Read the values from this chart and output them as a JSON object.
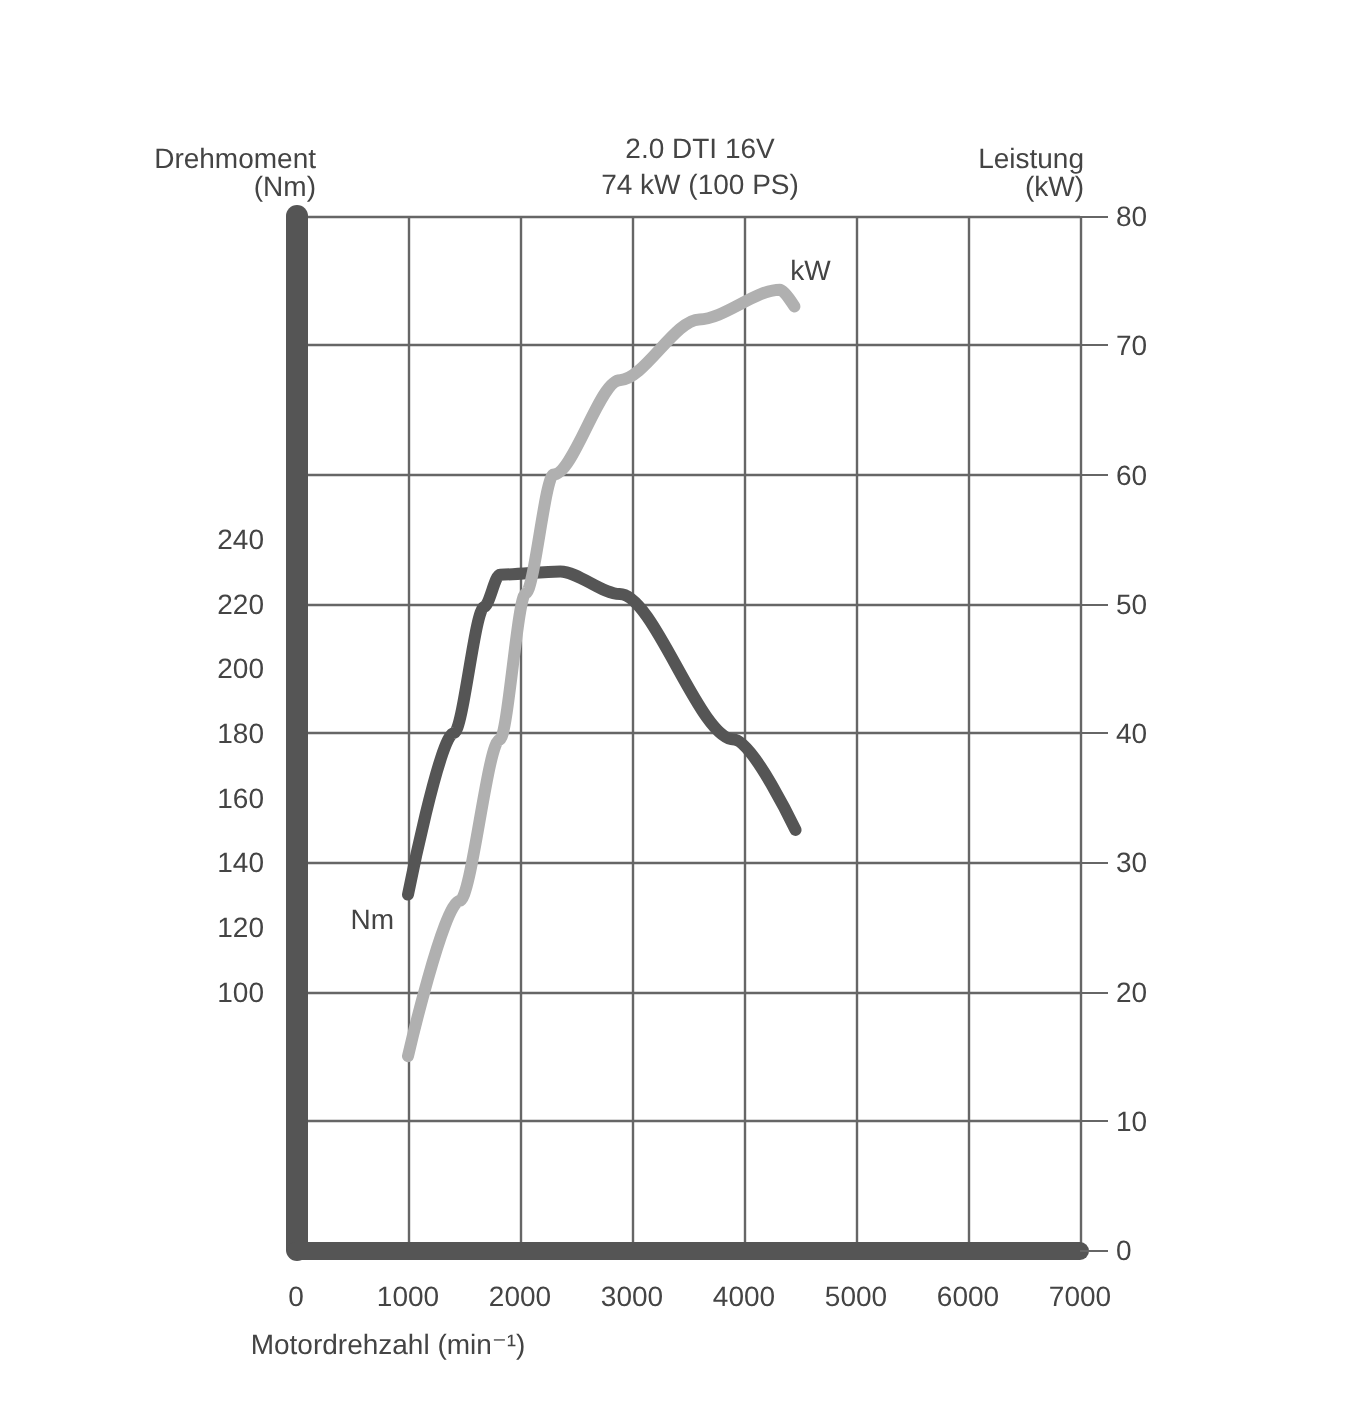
{
  "chart_data": {
    "type": "line",
    "title": "2.0 DTI 16V",
    "subtitle": "74 kW (100 PS)",
    "xlabel": "Motordrehzahl (min⁻¹)",
    "ylabel": "Drehmoment\n(Nm)",
    "y2label": "Leistung\n(kW)",
    "xlim": [
      0,
      7000
    ],
    "xticks": [
      0,
      1000,
      2000,
      3000,
      4000,
      5000,
      6000,
      7000
    ],
    "ylim": [
      20,
      340
    ],
    "yticks": [
      100,
      120,
      140,
      160,
      180,
      200,
      220,
      240
    ],
    "y2lim": [
      0,
      80
    ],
    "y2ticks": [
      0,
      10,
      20,
      30,
      40,
      50,
      60,
      70,
      80
    ],
    "grid": true,
    "marker": "none",
    "line_style": "solid",
    "series": [
      {
        "name": "Nm",
        "color": "#555555",
        "x": [
          1000,
          1410,
          1680,
          1820,
          2360,
          2890,
          3910,
          4460
        ],
        "values": [
          130,
          180,
          219,
          229,
          230,
          223,
          178,
          150
        ]
      },
      {
        "name": "kW",
        "color": "#b0b0b0",
        "axis": "y2",
        "x": [
          1000,
          1460,
          1820,
          2050,
          2300,
          2890,
          3600,
          4320,
          4450
        ],
        "values": [
          15,
          27,
          39.5,
          50.8,
          60,
          67.3,
          72,
          74.3,
          73
        ]
      }
    ]
  }
}
